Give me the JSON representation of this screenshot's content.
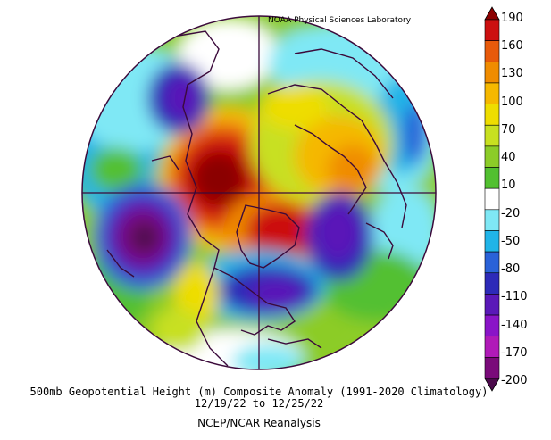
{
  "credit": "NOAA Physical Sciences Laboratory",
  "caption": {
    "line1": "500mb Geopotential Height (m) Composite Anomaly (1991-2020 Climatology)",
    "line2": "12/19/22  to 12/25/22",
    "source": "NCEP/NCAR Reanalysis"
  },
  "colorbar": {
    "ticks": [
      "190",
      "160",
      "130",
      "100",
      "70",
      "40",
      "10",
      "-20",
      "-50",
      "-80",
      "-110",
      "-140",
      "-170",
      "-200"
    ],
    "colors": [
      "#8b0000",
      "#cc1010",
      "#e85a0a",
      "#f08c00",
      "#f5b800",
      "#eedd00",
      "#c8e020",
      "#8ccc28",
      "#52c030",
      "#ffffff",
      "#7fe8f5",
      "#20b4e8",
      "#2a62d8",
      "#2d2ab8",
      "#5a18b8",
      "#8a14c8",
      "#b01ab8",
      "#7a0a7a",
      "#4b0a4b"
    ]
  },
  "map": {
    "projection": "north-polar-stereographic",
    "field": "500mb geopotential height anomaly"
  }
}
